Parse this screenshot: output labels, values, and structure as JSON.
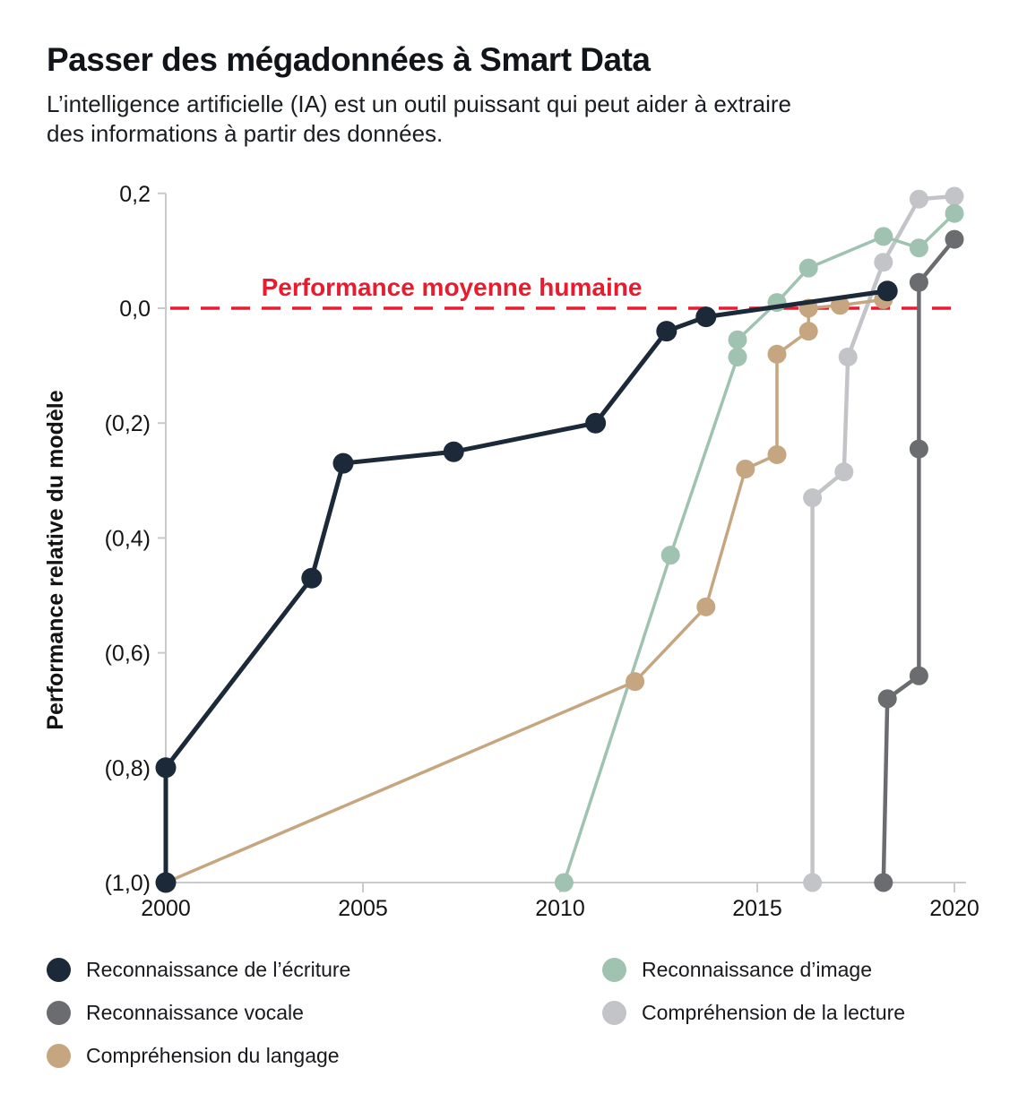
{
  "header": {
    "title": "Passer des mégadonnées à Smart Data",
    "subtitle_lines": [
      "L’intelligence artificielle (IA) est un outil puissant qui peut aider à extraire",
      "des informations à partir des données."
    ]
  },
  "chart_data": {
    "type": "line",
    "title": "Passer des mégadonnées à Smart Data",
    "xlabel": "",
    "ylabel": "Performance relative du modèle",
    "xlim": [
      2000,
      2020
    ],
    "ylim": [
      -1.0,
      0.2
    ],
    "grid": false,
    "legend_position": "bottom",
    "x_ticks": [
      {
        "value": 2000,
        "label": "2000"
      },
      {
        "value": 2005,
        "label": "2005"
      },
      {
        "value": 2010,
        "label": "2010"
      },
      {
        "value": 2015,
        "label": "2015"
      },
      {
        "value": 2020,
        "label": "2020"
      }
    ],
    "y_ticks": [
      {
        "value": 0.2,
        "label": "0,2"
      },
      {
        "value": 0.0,
        "label": "0,0"
      },
      {
        "value": -0.2,
        "label": "(0,2)"
      },
      {
        "value": -0.4,
        "label": "(0,4)"
      },
      {
        "value": -0.6,
        "label": "(0,6)"
      },
      {
        "value": -0.8,
        "label": "(0,8)"
      },
      {
        "value": -1.0,
        "label": "(1,0)"
      }
    ],
    "reference_line": {
      "value": 0.0,
      "label": "Performance moyenne humaine",
      "color": "#e81c2e",
      "style": "dashed"
    },
    "series": [
      {
        "name": "Reconnaissance de l’écriture",
        "color": "#1b2938",
        "points": [
          [
            2000,
            -1.0
          ],
          [
            2000,
            -0.8
          ],
          [
            2003.7,
            -0.47
          ],
          [
            2004.5,
            -0.27
          ],
          [
            2007.3,
            -0.25
          ],
          [
            2010.9,
            -0.2
          ],
          [
            2012.7,
            -0.04
          ],
          [
            2013.7,
            -0.015
          ],
          [
            2018.3,
            0.03
          ]
        ]
      },
      {
        "name": "Reconnaissance vocale",
        "color": "#6b6c6f",
        "points": [
          [
            2018.2,
            -1.0
          ],
          [
            2018.3,
            -0.68
          ],
          [
            2019.1,
            -0.64
          ],
          [
            2019.1,
            -0.245
          ],
          [
            2019.1,
            0.045
          ],
          [
            2020,
            0.12
          ]
        ]
      },
      {
        "name": "Compréhension du langage",
        "color": "#c6a680",
        "points": [
          [
            2000,
            -1.0
          ],
          [
            2011.9,
            -0.65
          ],
          [
            2013.7,
            -0.52
          ],
          [
            2014.7,
            -0.28
          ],
          [
            2015.5,
            -0.255
          ],
          [
            2015.5,
            -0.08
          ],
          [
            2016.3,
            -0.04
          ],
          [
            2016.3,
            0.0
          ],
          [
            2017.1,
            0.005
          ],
          [
            2018.2,
            0.015
          ]
        ]
      },
      {
        "name": "Reconnaissance d’image",
        "color": "#a0c2b1",
        "points": [
          [
            2010.1,
            -1.0
          ],
          [
            2012.8,
            -0.43
          ],
          [
            2014.5,
            -0.085
          ],
          [
            2014.5,
            -0.055
          ],
          [
            2015.5,
            0.01
          ],
          [
            2016.3,
            0.07
          ],
          [
            2018.2,
            0.125
          ],
          [
            2019.1,
            0.105
          ],
          [
            2020,
            0.165
          ]
        ]
      },
      {
        "name": "Compréhension de la lecture",
        "color": "#c3c4c7",
        "points": [
          [
            2016.4,
            -1.0
          ],
          [
            2016.4,
            -0.33
          ],
          [
            2017.2,
            -0.285
          ],
          [
            2017.3,
            -0.085
          ],
          [
            2018.2,
            0.08
          ],
          [
            2019.1,
            0.19
          ],
          [
            2020,
            0.195
          ]
        ]
      }
    ]
  }
}
